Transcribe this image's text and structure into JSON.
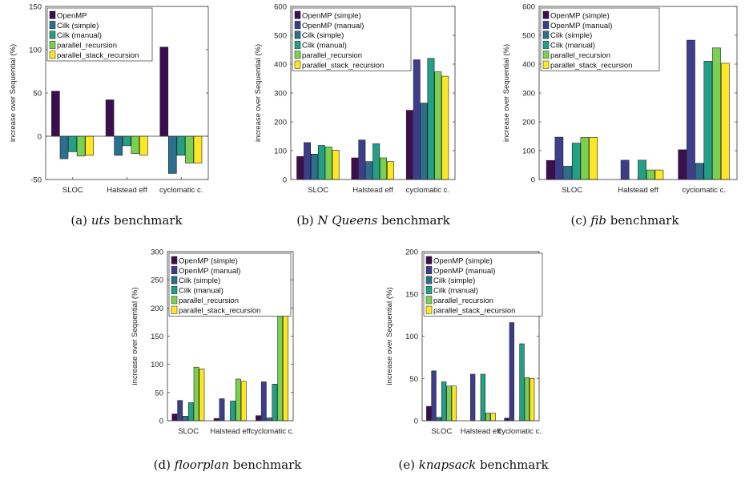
{
  "colors": {
    "OpenMP": "#3b0f4f",
    "OpenMP (simple)": "#3b0f4f",
    "OpenMP (manual)": "#3d3d8c",
    "Cilk (simple)": "#2b6f8e",
    "Cilk (manual)": "#22a085",
    "parallel_recursion": "#7ad151",
    "parallel_stack_recursion": "#fde725"
  },
  "chart_data": [
    {
      "id": "a",
      "type": "bar",
      "caption": {
        "prefix": "(a) ",
        "name": "uts",
        "suffix": " benchmark"
      },
      "ylabel": "increase over Sequential (%)",
      "ylim": [
        -50,
        150
      ],
      "yticks": [
        "-50",
        "0",
        "50",
        "100",
        "150"
      ],
      "yticks_num": [
        -50,
        0,
        50,
        100,
        150
      ],
      "categories": [
        "SLOC",
        "Halstead eff",
        "cyclomatic c."
      ],
      "legend_position": "top-left",
      "series": [
        {
          "name": "OpenMP",
          "values": [
            52,
            42,
            103
          ]
        },
        {
          "name": "Cilk (simple)",
          "values": [
            -26,
            -22,
            -43
          ]
        },
        {
          "name": "Cilk (manual)",
          "values": [
            -18,
            -11,
            -22
          ]
        },
        {
          "name": "parallel_recursion",
          "values": [
            -23,
            -20,
            -31
          ]
        },
        {
          "name": "parallel_stack_recursion",
          "values": [
            -22,
            -22,
            -31
          ]
        }
      ]
    },
    {
      "id": "b",
      "type": "bar",
      "caption": {
        "prefix": "(b) ",
        "name": "N Queens",
        "suffix": " benchmark"
      },
      "ylabel": "increase over Sequential (%)",
      "ylim": [
        0,
        600
      ],
      "yticks": [
        "0",
        "100",
        "200",
        "300",
        "400",
        "500",
        "600"
      ],
      "yticks_num": [
        0,
        100,
        200,
        300,
        400,
        500,
        600
      ],
      "categories": [
        "SLOC",
        "Halstead eff",
        "cyclomatic c."
      ],
      "legend_position": "top-left",
      "series": [
        {
          "name": "OpenMP (simple)",
          "values": [
            80,
            75,
            240
          ]
        },
        {
          "name": "OpenMP (manual)",
          "values": [
            128,
            137,
            415
          ]
        },
        {
          "name": "Cilk (simple)",
          "values": [
            88,
            62,
            265
          ]
        },
        {
          "name": "Cilk (manual)",
          "values": [
            118,
            124,
            420
          ]
        },
        {
          "name": "parallel_recursion",
          "values": [
            113,
            75,
            373
          ]
        },
        {
          "name": "parallel_stack_recursion",
          "values": [
            102,
            62,
            358
          ]
        }
      ]
    },
    {
      "id": "c",
      "type": "bar",
      "caption": {
        "prefix": "(c) ",
        "name": "fib",
        "suffix": " benchmark"
      },
      "ylabel": "increase over Sequential (%)",
      "ylim": [
        0,
        600
      ],
      "yticks": [
        "0",
        "100",
        "200",
        "300",
        "400",
        "500",
        "600"
      ],
      "yticks_num": [
        0,
        100,
        200,
        300,
        400,
        500,
        600
      ],
      "categories": [
        "SLOC",
        "Halstead eff",
        "cyclomatic c."
      ],
      "legend_position": "top-left",
      "series": [
        {
          "name": "OpenMP (simple)",
          "values": [
            66,
            0,
            103
          ]
        },
        {
          "name": "OpenMP (manual)",
          "values": [
            147,
            67,
            483
          ]
        },
        {
          "name": "Cilk (simple)",
          "values": [
            46,
            0,
            56
          ]
        },
        {
          "name": "Cilk (manual)",
          "values": [
            126,
            67,
            410
          ]
        },
        {
          "name": "parallel_recursion",
          "values": [
            146,
            33,
            456
          ]
        },
        {
          "name": "parallel_stack_recursion",
          "values": [
            146,
            33,
            403
          ]
        }
      ]
    },
    {
      "id": "d",
      "type": "bar",
      "caption": {
        "prefix": "(d) ",
        "name": "floorplan",
        "suffix": " benchmark"
      },
      "ylabel": "increase over Sequential (%)",
      "ylim": [
        0,
        300
      ],
      "yticks": [
        "0",
        "50",
        "100",
        "150",
        "200",
        "250",
        "300"
      ],
      "yticks_num": [
        0,
        50,
        100,
        150,
        200,
        250,
        300
      ],
      "categories": [
        "SLOC",
        "Halstead eff",
        "cyclomatic c."
      ],
      "legend_position": "top-left",
      "series": [
        {
          "name": "OpenMP (simple)",
          "values": [
            12,
            4,
            9
          ]
        },
        {
          "name": "OpenMP (manual)",
          "values": [
            36,
            39,
            69
          ]
        },
        {
          "name": "Cilk (simple)",
          "values": [
            8,
            0,
            5
          ]
        },
        {
          "name": "Cilk (manual)",
          "values": [
            32,
            35,
            65
          ]
        },
        {
          "name": "parallel_recursion",
          "values": [
            95,
            74,
            254
          ]
        },
        {
          "name": "parallel_stack_recursion",
          "values": [
            92,
            70,
            247
          ]
        }
      ]
    },
    {
      "id": "e",
      "type": "bar",
      "caption": {
        "prefix": "(e) ",
        "name": "knapsack",
        "suffix": " benchmark"
      },
      "ylabel": "increase over Sequential (%)",
      "ylim": [
        0,
        200
      ],
      "yticks": [
        "0",
        "50",
        "100",
        "150",
        "200"
      ],
      "yticks_num": [
        0,
        50,
        100,
        150,
        200
      ],
      "categories": [
        "SLOC",
        "Halstead eff",
        "cyclomatic c."
      ],
      "legend_position": "top-left",
      "series": [
        {
          "name": "OpenMP (simple)",
          "values": [
            17,
            0,
            3
          ]
        },
        {
          "name": "OpenMP (manual)",
          "values": [
            59,
            55,
            116
          ]
        },
        {
          "name": "Cilk (simple)",
          "values": [
            4,
            0,
            0
          ]
        },
        {
          "name": "Cilk (manual)",
          "values": [
            46,
            55,
            91
          ]
        },
        {
          "name": "parallel_recursion",
          "values": [
            41,
            9,
            51
          ]
        },
        {
          "name": "parallel_stack_recursion",
          "values": [
            41,
            9,
            50
          ]
        }
      ]
    }
  ]
}
